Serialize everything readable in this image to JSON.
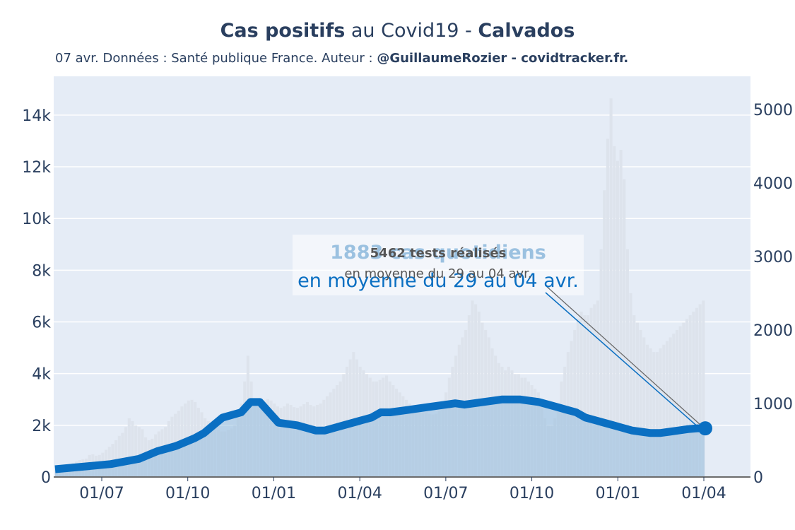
{
  "title": {
    "part1": "Cas positifs",
    "part2": " au Covid19 - ",
    "part3": "Calvados"
  },
  "subtitle": {
    "text": "07 avr. Données : Santé publique France. Auteur : ",
    "bold": "@GuillaumeRozier - covidtracker.fr."
  },
  "annotations": {
    "cases_main": "1883 cas quotidiens",
    "cases_sub": "en moyenne du 29 au 04 avr.",
    "tests_main": "5462 tests réalisés",
    "tests_sub": "en moyenne du 29 au 04 avr."
  },
  "colors": {
    "plot_bg": "#e5ecf6",
    "tests_fill": "#dde3ec",
    "cases_line": "#0a6fc2",
    "cases_fill": "#95bedf",
    "annotation_text": "#1f77b4",
    "text": "#2a3f5f"
  },
  "chart_data": {
    "type": "area",
    "x_tick_labels": [
      "01/07",
      "01/10",
      "01/01",
      "01/04",
      "01/07",
      "01/10",
      "01/01",
      "01/04"
    ],
    "y_left_ticks": [
      "0",
      "2k",
      "4k",
      "6k",
      "8k",
      "10k",
      "12k",
      "14k"
    ],
    "y_left_range": [
      0,
      15500
    ],
    "y_right_ticks": [
      "0",
      "1000",
      "2000",
      "3000",
      "4000",
      "5000"
    ],
    "y_right_range": [
      0,
      5450
    ],
    "x_range_days_from_may1_2020": [
      0,
      349
    ],
    "grid": true,
    "series": [
      {
        "name": "",
        "axis": "left",
        "style": "area",
        "x_days": [
          0,
          15,
          30,
          45,
          55,
          60,
          65,
          75,
          80,
          85,
          90,
          100,
          105,
          110,
          120,
          130,
          135,
          140,
          145,
          150,
          155,
          160,
          165,
          170,
          175,
          180,
          190,
          200,
          210,
          215,
          220,
          230,
          240,
          250,
          260,
          265,
          270,
          275,
          280,
          285,
          290,
          295,
          300,
          305,
          310,
          315,
          320,
          325,
          330,
          335,
          340,
          345,
          349
        ],
        "values": [
          300,
          400,
          500,
          700,
          1000,
          1100,
          1200,
          1500,
          1700,
          2000,
          2300,
          2500,
          2900,
          2900,
          2100,
          2000,
          1900,
          1800,
          1800,
          1900,
          2000,
          2100,
          2200,
          2300,
          2500,
          2500,
          2600,
          2700,
          2800,
          2850,
          2800,
          2900,
          3000,
          3000,
          2900,
          2800,
          2700,
          2600,
          2500,
          2300,
          2200,
          2100,
          2000,
          1900,
          1800,
          1750,
          1700,
          1700,
          1750,
          1800,
          1850,
          1883,
          1883
        ]
      },
      {
        "name": "",
        "axis": "right",
        "style": "bars",
        "values": [
          130,
          140,
          150,
          160,
          170,
          190,
          210,
          230,
          240,
          250,
          300,
          310,
          290,
          300,
          330,
          370,
          410,
          450,
          500,
          560,
          600,
          680,
          800,
          760,
          700,
          680,
          650,
          540,
          500,
          520,
          580,
          620,
          650,
          680,
          760,
          820,
          860,
          900,
          960,
          1000,
          1040,
          1050,
          1020,
          940,
          880,
          800,
          760,
          700,
          680,
          640,
          620,
          620,
          640,
          660,
          700,
          800,
          1000,
          1300,
          1650,
          1300,
          1000,
          980,
          980,
          1040,
          1060,
          1040,
          1000,
          960,
          940,
          960,
          1000,
          980,
          950,
          940,
          960,
          990,
          1020,
          980,
          960,
          980,
          1000,
          1050,
          1100,
          1150,
          1200,
          1250,
          1300,
          1400,
          1500,
          1600,
          1700,
          1600,
          1500,
          1450,
          1400,
          1350,
          1300,
          1300,
          1320,
          1350,
          1380,
          1300,
          1250,
          1200,
          1150,
          1100,
          1050,
          1000,
          960,
          930,
          900,
          880,
          880,
          860,
          850,
          860,
          900,
          1000,
          1150,
          1350,
          1500,
          1650,
          1800,
          1900,
          2000,
          2200,
          2400,
          2350,
          2250,
          2100,
          2000,
          1900,
          1750,
          1650,
          1550,
          1500,
          1450,
          1500,
          1450,
          1400,
          1400,
          1350,
          1350,
          1300,
          1250,
          1200,
          1150,
          1000,
          800,
          700,
          700,
          800,
          1000,
          1300,
          1500,
          1700,
          1850,
          2000,
          2150,
          2250,
          2200,
          2200,
          2300,
          2350,
          2400,
          3100,
          3900,
          4600,
          5150,
          4500,
          4300,
          4450,
          4050,
          3100,
          2500,
          2200,
          2100,
          2000,
          1900,
          1800,
          1750,
          1700,
          1700,
          1750,
          1800,
          1850,
          1900,
          1950,
          2000,
          2050,
          2100,
          2150,
          2200,
          2250,
          2300,
          2350,
          2400
        ]
      }
    ]
  }
}
